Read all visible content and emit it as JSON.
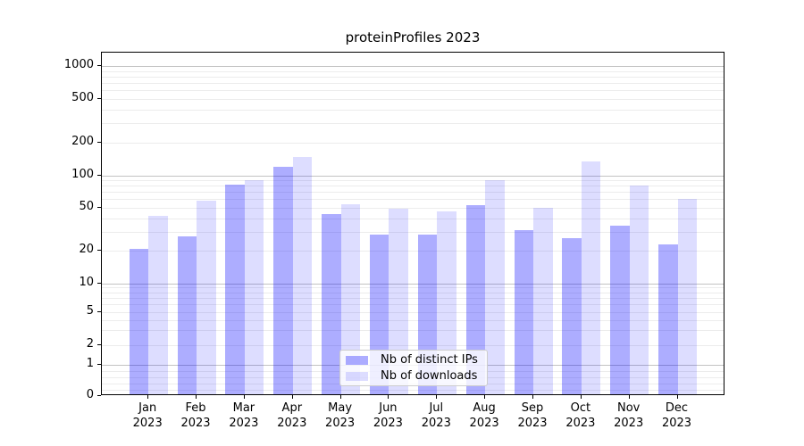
{
  "figure": {
    "title": "proteinProfiles 2023"
  },
  "chart_data": {
    "type": "bar",
    "title": "proteinProfiles 2023",
    "categories": [
      "Jan 2023",
      "Feb 2023",
      "Mar 2023",
      "Apr 2023",
      "May 2023",
      "Jun 2023",
      "Jul 2023",
      "Aug 2023",
      "Sep 2023",
      "Oct 2023",
      "Nov 2023",
      "Dec 2023"
    ],
    "series": [
      {
        "name": "Nb of distinct IPs",
        "color": "rgba(0,0,255,0.32)",
        "swatch_hex": "#adadf6",
        "values": [
          21,
          27,
          82,
          120,
          44,
          28,
          28,
          53,
          31,
          26,
          34,
          23
        ]
      },
      {
        "name": "Nb of downloads",
        "color": "rgba(0,0,255,0.135)",
        "swatch_hex": "#ddddfb",
        "values": [
          42,
          58,
          90,
          148,
          54,
          49,
          46,
          91,
          50,
          134,
          80,
          60
        ]
      }
    ],
    "xlabel": "",
    "ylabel": "",
    "yscale": "symlog",
    "y_ticks": [
      0,
      1,
      2,
      5,
      10,
      20,
      50,
      100,
      200,
      500,
      1000
    ],
    "y_tick_labels": [
      "0",
      "1",
      "2",
      "5",
      "10",
      "20",
      "50",
      "100",
      "200",
      "500",
      "1000"
    ],
    "ylim": [
      0,
      1300
    ],
    "grid": "both",
    "legend_position": "lower center",
    "bar_width_fraction": 0.4
  },
  "colors": {
    "major_grid": "#c3c3c3",
    "minor_grid": "#ececec",
    "spine": "#000000",
    "legend_border": "#cccccc",
    "legend_bg": "rgba(255,255,255,0.8)"
  }
}
